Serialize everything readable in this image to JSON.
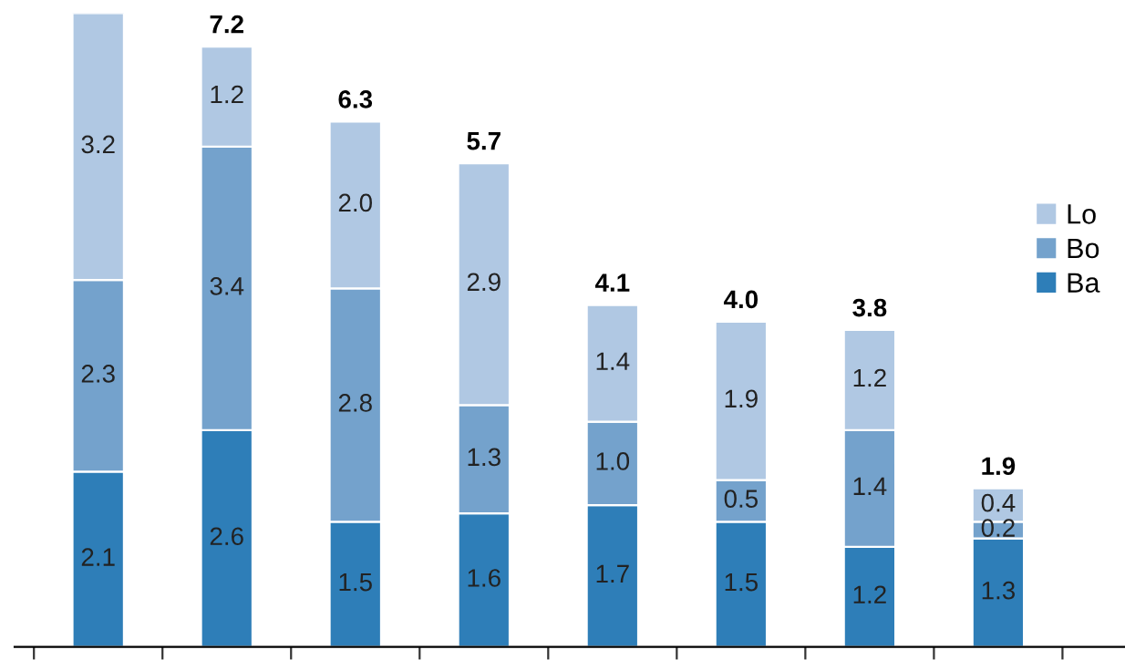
{
  "chart_data": {
    "type": "bar",
    "stacked": true,
    "legend": "right",
    "grid": false,
    "categories": [
      null,
      null,
      null,
      null,
      null,
      null,
      null,
      null
    ],
    "series": [
      {
        "name": "Ba",
        "color": "#2e7eb8",
        "values": [
          2.1,
          2.6,
          1.5,
          1.6,
          1.7,
          1.5,
          1.2,
          1.3
        ],
        "value_labels": [
          "2.1",
          "2.6",
          "1.5",
          "1.6",
          "1.7",
          "1.5",
          "1.2",
          "1.3"
        ]
      },
      {
        "name": "Bo",
        "color": "#74a2cc",
        "values": [
          2.3,
          3.4,
          2.8,
          1.3,
          1.0,
          0.5,
          1.4,
          0.2
        ],
        "value_labels": [
          "2.3",
          "3.4",
          "2.8",
          "1.3",
          "1.0",
          "0.5",
          "1.4",
          "0.2"
        ]
      },
      {
        "name": "Lo",
        "color": "#b0c8e3",
        "values": [
          3.2,
          1.2,
          2.0,
          2.9,
          1.4,
          1.9,
          1.2,
          0.4
        ],
        "value_labels": [
          "3.2",
          "1.2",
          "2.0",
          "2.9",
          "1.4",
          "1.9",
          "1.2",
          "0.4"
        ]
      }
    ],
    "totals": [
      null,
      "7.2",
      "6.3",
      "5.7",
      "4.1",
      "4.0",
      "3.8",
      "1.9"
    ]
  }
}
